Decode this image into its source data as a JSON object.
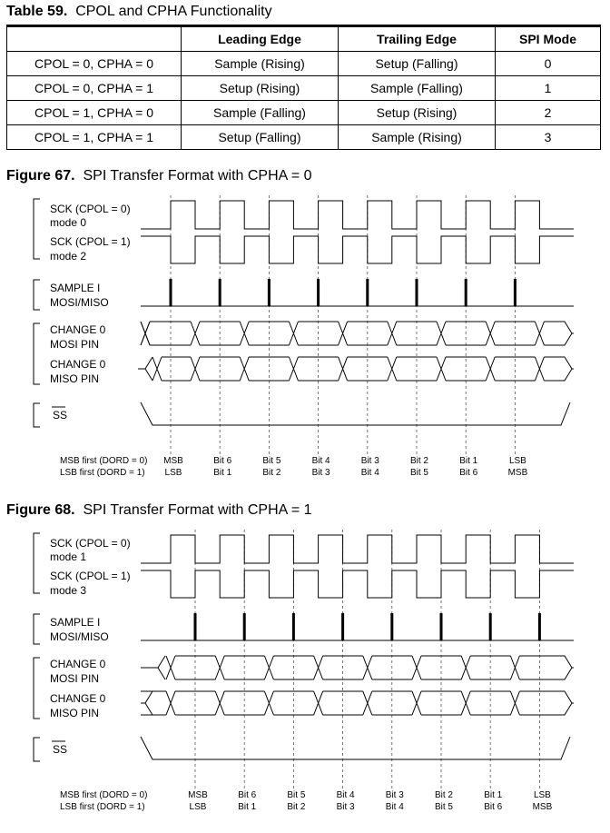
{
  "table": {
    "number": "Table 59.",
    "caption": "CPOL and CPHA Functionality",
    "headers": [
      "",
      "Leading Edge",
      "Trailing Edge",
      "SPI Mode"
    ],
    "rows": [
      [
        "CPOL = 0, CPHA = 0",
        "Sample (Rising)",
        "Setup (Falling)",
        "0"
      ],
      [
        "CPOL = 0, CPHA = 1",
        "Setup (Rising)",
        "Sample (Falling)",
        "1"
      ],
      [
        "CPOL = 1, CPHA = 0",
        "Sample (Falling)",
        "Setup (Rising)",
        "2"
      ],
      [
        "CPOL = 1, CPHA = 1",
        "Setup (Falling)",
        "Sample (Rising)",
        "3"
      ]
    ]
  },
  "figures": [
    {
      "number": "Figure 67.",
      "caption": "SPI Transfer Format with CPHA = 0",
      "cpha": 0,
      "labels": {
        "sck0": "SCK (CPOL = 0)",
        "modeA": "mode 0",
        "sck1": "SCK (CPOL = 1)",
        "modeB": "mode 2",
        "sample": "SAMPLE I",
        "sample2": "MOSI/MISO",
        "mosi": "CHANGE 0",
        "mosi2": "MOSI PIN",
        "miso": "CHANGE 0",
        "miso2": "MISO PIN",
        "ss": "SS"
      },
      "order_labels": [
        "MSB first (DORD = 0)",
        "LSB first (DORD = 1)"
      ],
      "msb_first": [
        "MSB",
        "Bit 6",
        "Bit 5",
        "Bit 4",
        "Bit 3",
        "Bit 2",
        "Bit 1",
        "LSB"
      ],
      "lsb_first": [
        "LSB",
        "Bit 1",
        "Bit 2",
        "Bit 3",
        "Bit 4",
        "Bit 5",
        "Bit 6",
        "MSB"
      ]
    },
    {
      "number": "Figure 68.",
      "caption": "SPI Transfer Format with CPHA = 1",
      "cpha": 1,
      "labels": {
        "sck0": "SCK (CPOL = 0)",
        "modeA": "mode 1",
        "sck1": "SCK (CPOL = 1)",
        "modeB": "mode 3",
        "sample": "SAMPLE I",
        "sample2": "MOSI/MISO",
        "mosi": "CHANGE 0",
        "mosi2": "MOSI PIN",
        "miso": "CHANGE 0",
        "miso2": "MISO PIN",
        "ss": "SS"
      },
      "order_labels": [
        "MSB first (DORD = 0)",
        "LSB first (DORD = 1)"
      ],
      "msb_first": [
        "MSB",
        "Bit 6",
        "Bit 5",
        "Bit 4",
        "Bit 3",
        "Bit 2",
        "Bit 1",
        "LSB"
      ],
      "lsb_first": [
        "LSB",
        "Bit 1",
        "Bit 2",
        "Bit 3",
        "Bit 4",
        "Bit 5",
        "Bit 6",
        "MSB"
      ]
    }
  ]
}
